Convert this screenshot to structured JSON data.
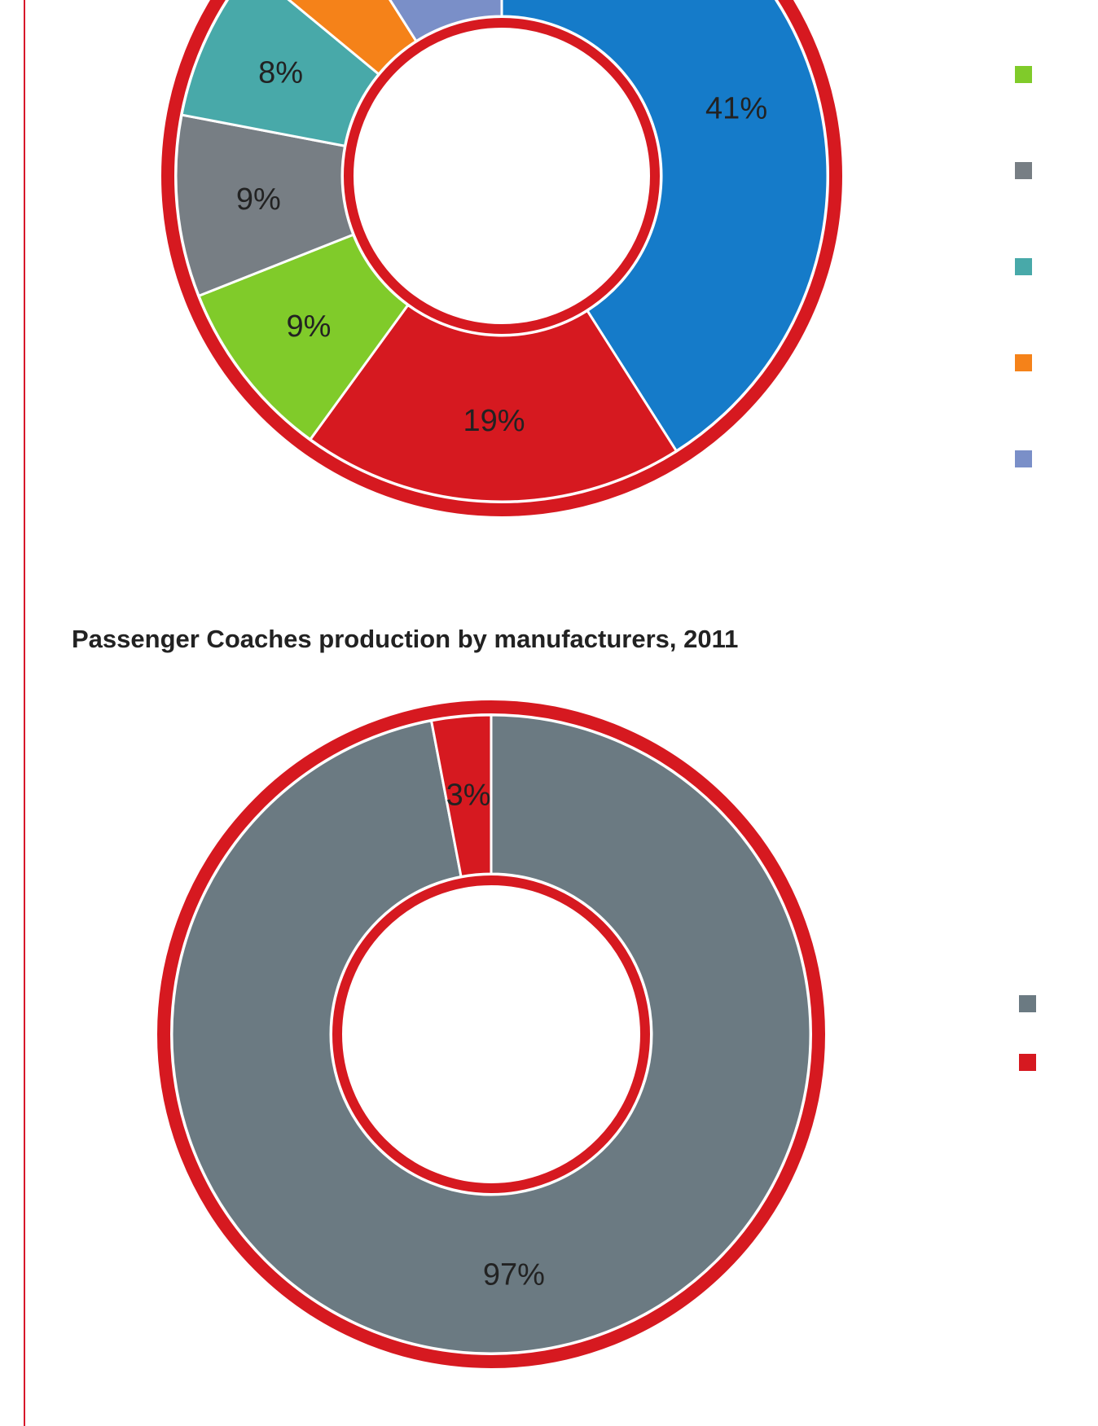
{
  "chart_data": [
    {
      "type": "pie",
      "style": "donut",
      "title": "",
      "partially_visible": "top cut off",
      "slices": [
        {
          "label": "41%",
          "value": 41,
          "color": "#157bc9"
        },
        {
          "label": "19%",
          "value": 19,
          "color": "#d61920"
        },
        {
          "label": "9%",
          "value": 9,
          "color": "#80cb2a"
        },
        {
          "label": "9%",
          "value": 9,
          "color": "#777e84"
        },
        {
          "label": "8%",
          "value": 8,
          "color": "#48a9a9"
        },
        {
          "label": "",
          "value": 5,
          "color": "#f58219"
        },
        {
          "label": "",
          "value": 9,
          "color": "#7a8fc8"
        }
      ],
      "legend": {
        "placement": "right",
        "entries": [
          {
            "name": "",
            "color": "#80cb2a"
          },
          {
            "name": "",
            "color": "#777e84"
          },
          {
            "name": "",
            "color": "#48a9a9"
          },
          {
            "name": "",
            "color": "#f58219"
          },
          {
            "name": "",
            "color": "#7a8fc8"
          }
        ]
      },
      "ring_color": "#d61920"
    },
    {
      "type": "pie",
      "style": "donut",
      "title": "Passenger Coaches production by manufacturers, 2011",
      "slices": [
        {
          "label": "97%",
          "value": 97,
          "color": "#6b7a82"
        },
        {
          "label": "3%",
          "value": 3,
          "color": "#d61920"
        }
      ],
      "legend": {
        "placement": "right",
        "entries": [
          {
            "name": "",
            "color": "#6b7a82"
          },
          {
            "name": "",
            "color": "#d61920"
          }
        ]
      },
      "ring_color": "#d61920"
    }
  ]
}
